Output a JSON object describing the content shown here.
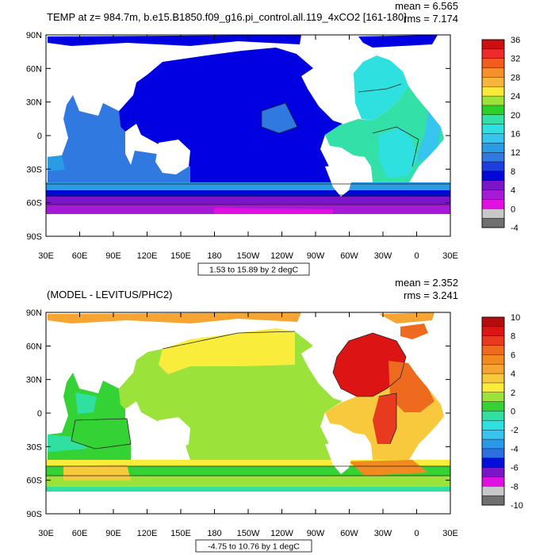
{
  "panels": [
    {
      "title": "TEMP at z= 984.7m, b.e15.B1850.f09_g16.pi_control.all.119_4xCO2 [161-180]",
      "stats": {
        "mean": "mean = 6.565",
        "rms": "rms = 7.174"
      },
      "lat_ticks": [
        "90N",
        "60N",
        "30N",
        "0",
        "30S",
        "60S",
        "90S"
      ],
      "lon_ticks": [
        "30E",
        "60E",
        "90E",
        "120E",
        "150E",
        "180",
        "150W",
        "120W",
        "90W",
        "60W",
        "30W",
        "0",
        "30E"
      ],
      "contour_info": "1.53 to 15.89 by 2 degC",
      "colorbar": {
        "labels": [
          "36",
          "32",
          "28",
          "24",
          "20",
          "16",
          "12",
          "8",
          "4",
          "0",
          "-4"
        ],
        "colors": [
          "#cc1010",
          "#ee2a2a",
          "#f25c1c",
          "#f6902a",
          "#f8b53c",
          "#f9ea3a",
          "#9be33a",
          "#2ad12a",
          "#33e0a8",
          "#2fe0e0",
          "#37c4ef",
          "#2a9ce6",
          "#2f79e0",
          "#1d3fe0",
          "#0008d8",
          "#7a16c8",
          "#a51ad6",
          "#e011e0",
          "#c8c8c8",
          "#707070"
        ]
      }
    },
    {
      "title": "(MODEL - LEVITUS/PHC2)",
      "stats": {
        "mean": "mean = 2.352",
        "rms": "rms = 3.241"
      },
      "lat_ticks": [
        "90N",
        "60N",
        "30N",
        "0",
        "30S",
        "60S",
        "90S"
      ],
      "lon_ticks": [
        "30E",
        "60E",
        "90E",
        "120E",
        "150E",
        "180",
        "150W",
        "120W",
        "90W",
        "60W",
        "30W",
        "0",
        "30E"
      ],
      "contour_info": "-4.75 to 10.76 by 1 degC",
      "colorbar": {
        "labels": [
          "10",
          "8",
          "6",
          "4",
          "2",
          "0",
          "-2",
          "-4",
          "-6",
          "-8",
          "-10"
        ],
        "colors": [
          "#b30d0d",
          "#dd1414",
          "#e83a1e",
          "#ee6a1e",
          "#f28a22",
          "#f6a533",
          "#f8c83d",
          "#f9ec3a",
          "#9be33a",
          "#34d234",
          "#2fe0a0",
          "#2fe0e0",
          "#38c4ef",
          "#2a9ae8",
          "#2d6fe0",
          "#0010d8",
          "#7a16c8",
          "#e011e0",
          "#c8c8c8",
          "#707070"
        ]
      }
    }
  ]
}
